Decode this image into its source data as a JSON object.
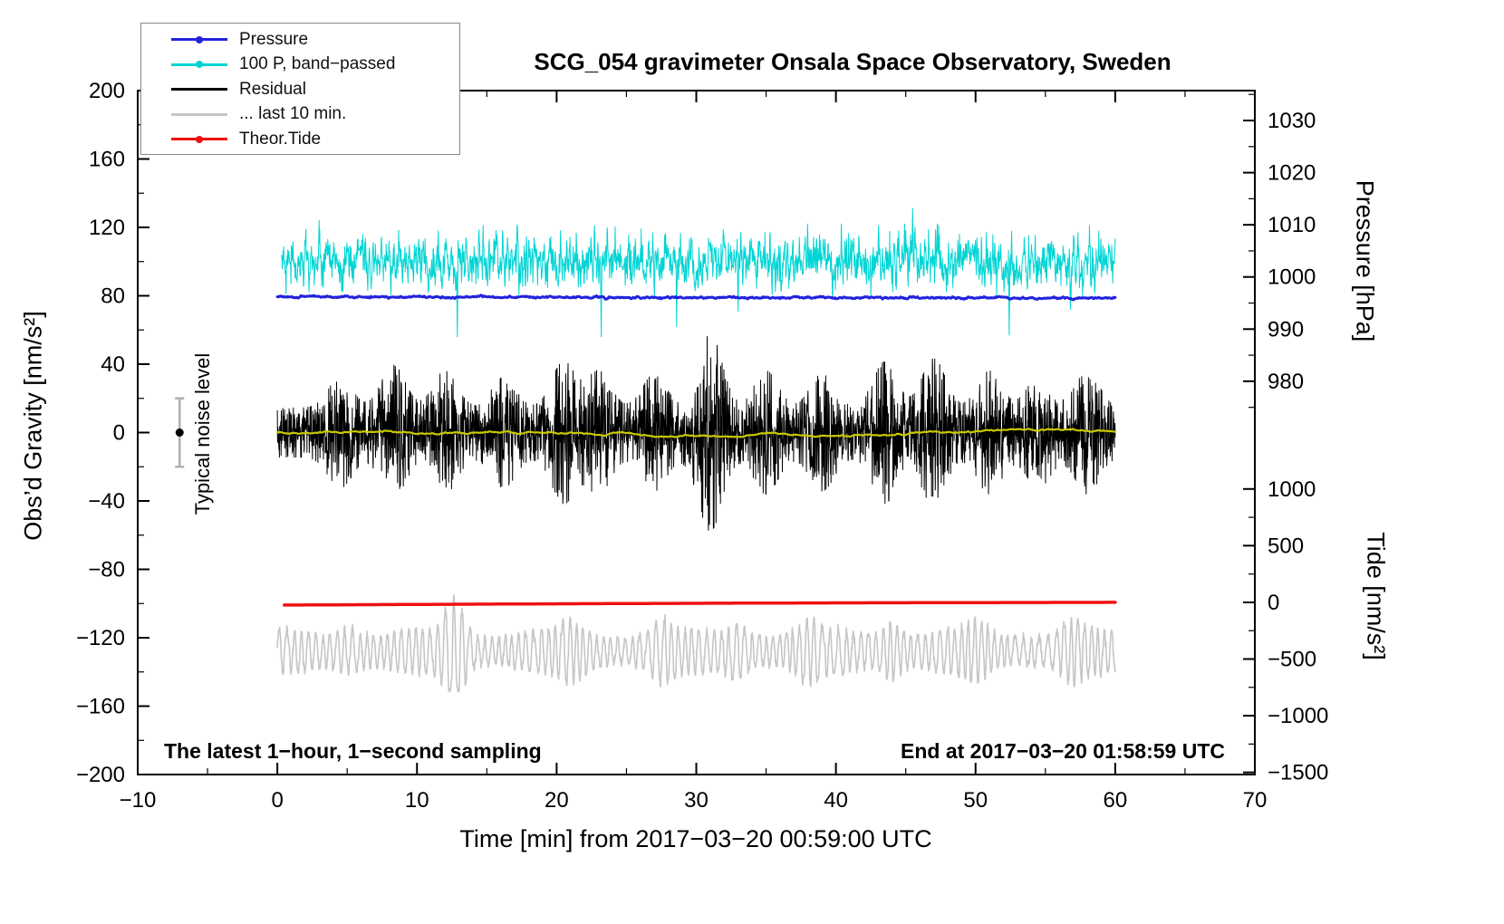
{
  "chart_data": {
    "type": "line",
    "title": "SCG_054 gravimeter Onsala Space Observatory, Sweden",
    "xlabel": "Time [min] from 2017−03−20 00:59:00 UTC",
    "ylabel_left": "Obs’d Gravity [nm/s²]",
    "ylabel_right_top": "Pressure [hPa]",
    "ylabel_right_bottom": "Tide [nm/s²]",
    "xlim": [
      -10,
      70
    ],
    "ylim": [
      -200,
      200
    ],
    "x_ticks": [
      -10,
      0,
      10,
      20,
      30,
      40,
      50,
      60,
      70
    ],
    "x_minor_step": 5,
    "y_ticks_left": [
      -200,
      -160,
      -120,
      -80,
      -40,
      0,
      40,
      80,
      120,
      160,
      200
    ],
    "y_minor_step": 20,
    "pressure_axis": {
      "ticks": [
        1030,
        1020,
        1010,
        1000,
        990,
        980
      ],
      "minor_step": 5,
      "ref_value": 1000,
      "ref_y": 91,
      "scale": 3.05
    },
    "tide_axis": {
      "ticks": [
        1000,
        500,
        0,
        -500,
        -1000,
        -1500
      ],
      "minor_step": 250,
      "ref_value": 0,
      "ref_y": -99.3,
      "scale": 0.0663
    },
    "annotations": {
      "footer_left": "The latest 1−hour, 1−second sampling",
      "footer_right": "End at 2017−03−20 01:58:59 UTC"
    },
    "noise_marker": {
      "x": -7,
      "y": 0,
      "half_height": 20,
      "label": "Typical noise level",
      "bar_color": "#b0b0b0",
      "dot_color": "#000000"
    },
    "legend": [
      {
        "label": "Pressure",
        "color": "#2222dd",
        "marker": true
      },
      {
        "label": "100 P, band−passed",
        "color": "#00d4d4",
        "marker": true
      },
      {
        "label": "Residual",
        "color": "#000000",
        "marker": false
      },
      {
        "label": "... last 10 min.",
        "color": "#c6c6c6",
        "marker": false
      },
      {
        "label": "Theor.Tide",
        "color": "#ee1111",
        "marker": true
      }
    ],
    "series": [
      {
        "name": "bandpassed",
        "kind": "ar",
        "color": "#00d4d4",
        "width": 1,
        "x_start": 0.3,
        "x_end": 60,
        "n": 2400,
        "base": 100,
        "ar": 0.5,
        "sigma_inn": 6.5,
        "spikes": [
          {
            "x": 3.0,
            "dy": 24
          },
          {
            "x": 12.9,
            "dy": -44
          },
          {
            "x": 23.2,
            "dy": -44
          },
          {
            "x": 28.6,
            "dy": -38
          },
          {
            "x": 33.0,
            "dy": -29
          },
          {
            "x": 45.5,
            "dy": 31
          },
          {
            "x": 52.4,
            "dy": -43
          },
          {
            "x": 56.8,
            "dy": -28
          }
        ]
      },
      {
        "name": "pressure",
        "kind": "flat",
        "color": "#2222dd",
        "width": 3,
        "x_start": 0,
        "x_end": 60,
        "n": 1200,
        "base": 79.4,
        "slope": -0.013,
        "noise": 0.22
      },
      {
        "name": "residual",
        "kind": "bursts",
        "color": "#000000",
        "width": 1,
        "x_start": 0,
        "x_end": 60,
        "n": 3200,
        "base": 0,
        "base_amp": 8,
        "clip": 1.8,
        "burst_sigma": 1.2,
        "bursts": [
          {
            "x": 4.5,
            "a": 10
          },
          {
            "x": 8.3,
            "a": 14
          },
          {
            "x": 12.0,
            "a": 12
          },
          {
            "x": 16.2,
            "a": 10
          },
          {
            "x": 20.5,
            "a": 15
          },
          {
            "x": 23.0,
            "a": 12
          },
          {
            "x": 27.0,
            "a": 11
          },
          {
            "x": 31.0,
            "a": 24
          },
          {
            "x": 35.0,
            "a": 12
          },
          {
            "x": 39.0,
            "a": 11
          },
          {
            "x": 43.5,
            "a": 15
          },
          {
            "x": 47.0,
            "a": 16
          },
          {
            "x": 51.0,
            "a": 12
          },
          {
            "x": 54.5,
            "a": 10
          },
          {
            "x": 58.0,
            "a": 12
          }
        ]
      },
      {
        "name": "smoothed",
        "kind": "walk",
        "color": "#c9c900",
        "width": 2.2,
        "x_start": 0,
        "x_end": 60,
        "n": 400,
        "base": 0,
        "step": 0.3,
        "damp": 0.985,
        "clamp": 2.6
      },
      {
        "name": "seismic",
        "kind": "osc",
        "color": "#c6c6c6",
        "width": 1.6,
        "x_start": 0,
        "x_end": 60,
        "n": 3000,
        "base": -128,
        "period": 0.52,
        "amp_base": 8,
        "amp_var": 5,
        "floor": -152,
        "burst_sigma": 0.9,
        "bursts": [
          {
            "x": 5.0,
            "a": 6
          },
          {
            "x": 12.7,
            "a": 22
          },
          {
            "x": 21.0,
            "a": 8
          },
          {
            "x": 27.5,
            "a": 9
          },
          {
            "x": 33.0,
            "a": 8
          },
          {
            "x": 38.0,
            "a": 7
          },
          {
            "x": 44.0,
            "a": 9
          },
          {
            "x": 50.0,
            "a": 7
          },
          {
            "x": 57.0,
            "a": 8
          }
        ]
      },
      {
        "name": "tide",
        "kind": "trend",
        "color": "#ee1111",
        "width": 3.5,
        "x_start": 0.5,
        "x_end": 60,
        "n": 200,
        "start": -100.9,
        "end": -99.3,
        "bulge": 0.25
      }
    ]
  }
}
